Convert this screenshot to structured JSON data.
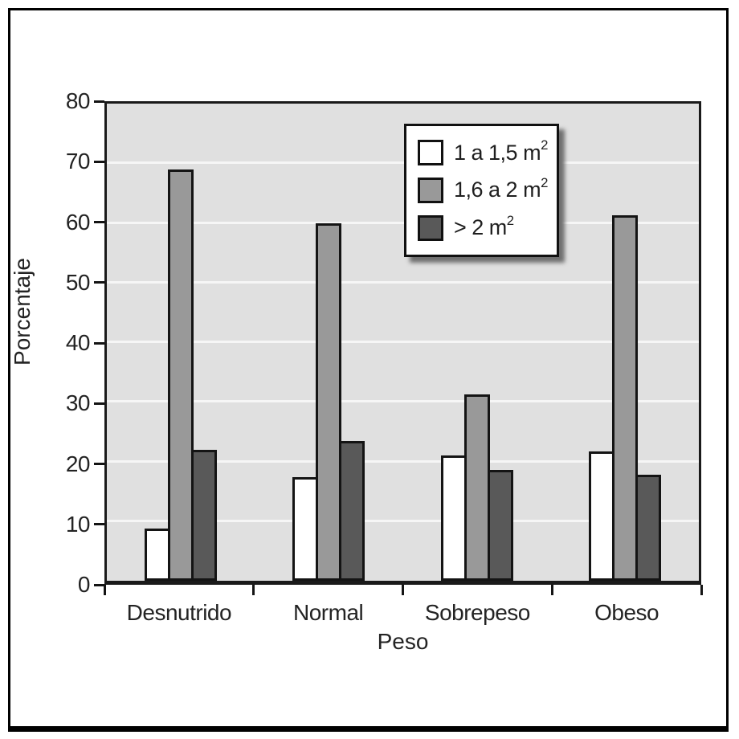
{
  "figure": {
    "kind": "grouped bar chart, scanned-book style",
    "frame_color": "#000000",
    "text_color": "#232323"
  },
  "chart_data": {
    "type": "bar",
    "title": "",
    "xlabel": "Peso",
    "ylabel": "Porcentaje",
    "categories": [
      "Desnutrido",
      "Normal",
      "Sobrepeso",
      "Obeso"
    ],
    "series": [
      {
        "name": "1 a 1,5 m²",
        "label": "1 a 1,5 m",
        "sup": "2",
        "color": "#ffffff",
        "values": [
          8.8,
          17.4,
          21.0,
          21.7
        ]
      },
      {
        "name": "1,6 a 2 m²",
        "label": "1,6 a 2 m",
        "sup": "2",
        "color": "#999999",
        "values": [
          68.9,
          59.9,
          31.3,
          61.3
        ]
      },
      {
        "name": "> 2 m²",
        "label": "> 2 m",
        "sup": "2",
        "color": "#595959",
        "values": [
          22.0,
          23.5,
          18.6,
          17.8
        ]
      }
    ],
    "ylim": [
      0,
      80
    ],
    "y_ticks": [
      0,
      10,
      20,
      30,
      40,
      50,
      60,
      70,
      80
    ],
    "grid": "horizontal lines every 10 units",
    "gridline_color": "#f6f6f6",
    "plot_bg": "#e0e0e0",
    "bar_border_color": "#141414",
    "legend_position": "inside plot, upper center-right"
  }
}
